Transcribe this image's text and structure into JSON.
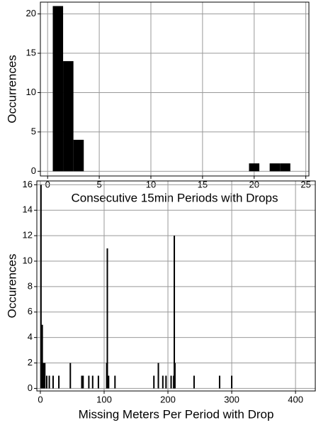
{
  "chart_data": [
    {
      "type": "histogram",
      "xlabel": "Consecutive 15min Periods with Drops",
      "ylabel": "Occurrences",
      "bins": [
        0.5,
        1.5,
        2.5,
        3.5,
        4.5,
        5.5,
        6.5,
        7.5,
        8.5,
        9.5,
        10.5,
        11.5,
        12.5,
        13.5,
        14.5,
        15.5,
        16.5,
        17.5,
        18.5,
        19.5,
        20.5,
        21.5,
        22.5,
        23.5
      ],
      "values": [
        21,
        14,
        4,
        0,
        0,
        0,
        0,
        0,
        0,
        0,
        0,
        0,
        0,
        0,
        0,
        0,
        0,
        0,
        0,
        1,
        0,
        1,
        1
      ],
      "color": "#000000",
      "xlim": [
        -0.7,
        25.3
      ],
      "xticks": [
        0,
        5,
        10,
        15,
        20,
        25
      ],
      "ylim": [
        -0.6,
        21.5
      ],
      "yticks": [
        0,
        5,
        10,
        15,
        20
      ],
      "grid": true
    },
    {
      "type": "bar",
      "xlabel": "Missing Meters Per Period with Drop",
      "ylabel": "Occurences",
      "x": [
        1,
        3,
        5,
        7,
        10,
        14,
        20,
        29,
        47,
        65,
        67,
        76,
        82,
        91,
        104,
        105,
        107,
        117,
        178,
        185,
        192,
        197,
        205,
        209,
        210,
        211,
        241,
        281,
        300
      ],
      "values": [
        16,
        5,
        2,
        2,
        1,
        1,
        1,
        1,
        2,
        1,
        1,
        1,
        1,
        1,
        2,
        11,
        1,
        1,
        1,
        2,
        1,
        1,
        1,
        1,
        12,
        2,
        1,
        1,
        1
      ],
      "color": "#000000",
      "xlim": [
        -5.5,
        431
      ],
      "xticks": [
        0,
        100,
        200,
        300,
        400
      ],
      "ylim": [
        -0.2,
        16.3
      ],
      "yticks": [
        0,
        2,
        4,
        6,
        8,
        10,
        12,
        14,
        16
      ],
      "grid": true
    }
  ]
}
